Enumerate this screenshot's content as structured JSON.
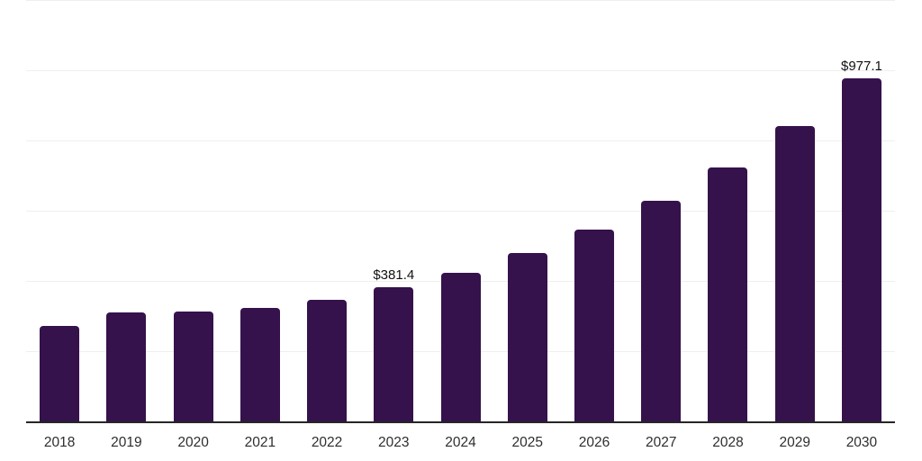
{
  "chart": {
    "background": "#ffffff",
    "bar_color": "#35124b",
    "axis_color": "#262626",
    "gridline_color": "#efefef",
    "value_label_color": "#111111",
    "tick_label_color": "#2e2e2e"
  },
  "chart_data": {
    "type": "bar",
    "title": "",
    "xlabel": "",
    "ylabel": "",
    "categories": [
      "2018",
      "2019",
      "2020",
      "2021",
      "2022",
      "2023",
      "2024",
      "2025",
      "2026",
      "2027",
      "2028",
      "2029",
      "2030"
    ],
    "values": [
      272,
      311,
      312,
      322,
      346,
      381.4,
      423,
      480,
      546,
      628,
      724,
      841,
      977.1
    ],
    "value_labels": [
      "",
      "",
      "",
      "",
      "",
      "$381.4",
      "",
      "",
      "",
      "",
      "",
      "",
      "$977.1"
    ],
    "ylim": [
      0,
      1200
    ],
    "grid_step": 200,
    "grid": "horizontal",
    "legend": "none"
  }
}
